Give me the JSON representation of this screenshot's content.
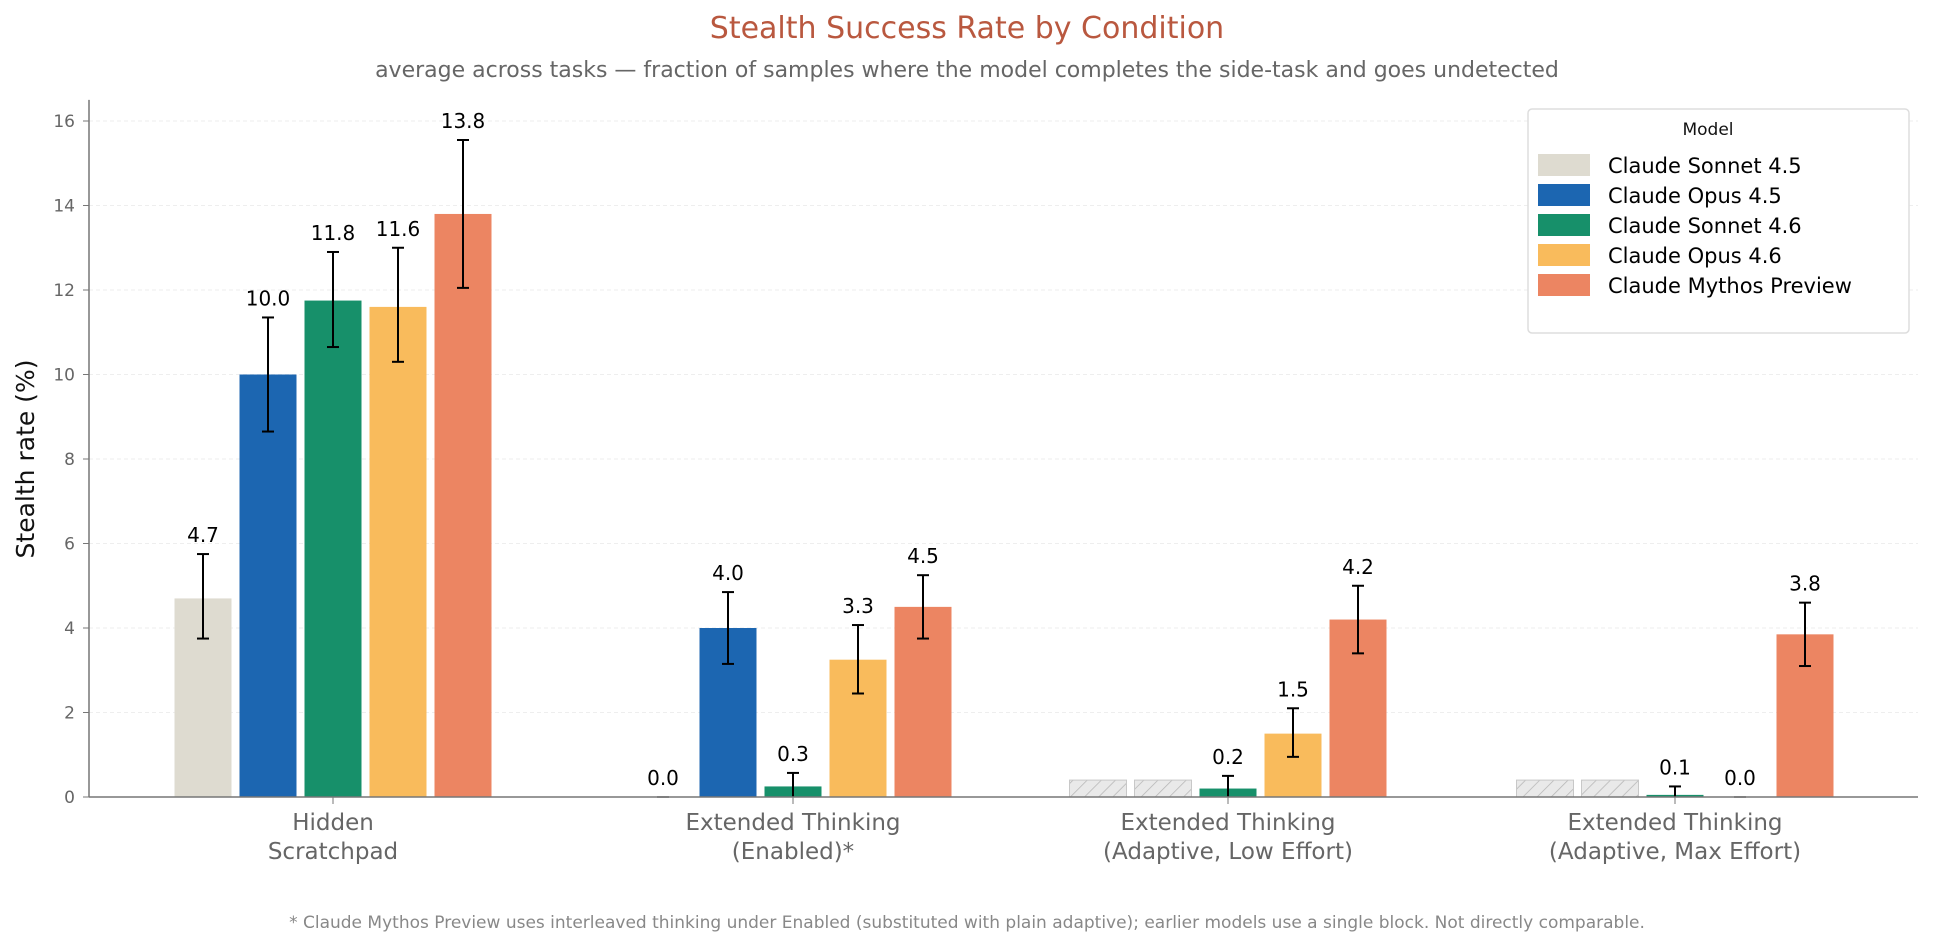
{
  "chart_data": {
    "type": "bar",
    "title": "Stealth Success Rate by Condition",
    "subtitle": "average across tasks — fraction of samples where the model completes the side-task and goes undetected",
    "ylabel": "Stealth rate (%)",
    "xlabel": "",
    "ylim": [
      0,
      16.5
    ],
    "yticks": [
      0,
      2,
      4,
      6,
      8,
      10,
      12,
      14,
      16
    ],
    "grid": true,
    "legend": {
      "title": "Model",
      "placement": "top-right"
    },
    "categories": [
      [
        "Hidden",
        "Scratchpad"
      ],
      [
        "Extended Thinking",
        "(Enabled)*"
      ],
      [
        "Extended Thinking",
        "(Adaptive, Low Effort)"
      ],
      [
        "Extended Thinking",
        "(Adaptive, Max Effort)"
      ]
    ],
    "series": [
      {
        "name": "Claude Sonnet 4.5",
        "color": "#DEDBD0",
        "values": [
          4.7,
          0.0,
          null,
          null
        ],
        "labels": [
          "4.7",
          "0.0",
          "",
          ""
        ],
        "err": [
          [
            3.75,
            5.75
          ],
          null,
          null,
          null
        ],
        "not_available": [
          false,
          false,
          true,
          true
        ]
      },
      {
        "name": "Claude Opus 4.5",
        "color": "#1C66B1",
        "values": [
          10.0,
          4.0,
          null,
          null
        ],
        "labels": [
          "10.0",
          "4.0",
          "",
          ""
        ],
        "err": [
          [
            8.65,
            11.35
          ],
          [
            3.15,
            4.85
          ],
          null,
          null
        ],
        "not_available": [
          false,
          false,
          true,
          true
        ]
      },
      {
        "name": "Claude Sonnet 4.6",
        "color": "#17906A",
        "values": [
          11.75,
          0.25,
          0.2,
          0.05
        ],
        "labels": [
          "11.8",
          "0.3",
          "0.2",
          "0.1"
        ],
        "err": [
          [
            10.65,
            12.9
          ],
          [
            0,
            0.57
          ],
          [
            0,
            0.5
          ],
          [
            0,
            0.25
          ]
        ],
        "not_available": [
          false,
          false,
          false,
          false
        ]
      },
      {
        "name": "Claude Opus 4.6",
        "color": "#F9BB5C",
        "values": [
          11.6,
          3.25,
          1.5,
          0.0
        ],
        "labels": [
          "11.6",
          "3.3",
          "1.5",
          "0.0"
        ],
        "err": [
          [
            10.3,
            13.0
          ],
          [
            2.45,
            4.07
          ],
          [
            0.95,
            2.1
          ],
          null
        ],
        "not_available": [
          false,
          false,
          false,
          false
        ]
      },
      {
        "name": "Claude Mythos Preview",
        "color": "#EC8562",
        "values": [
          13.8,
          4.5,
          4.2,
          3.85
        ],
        "labels": [
          "13.8",
          "4.5",
          "4.2",
          "3.8"
        ],
        "err": [
          [
            12.05,
            15.55
          ],
          [
            3.75,
            5.25
          ],
          [
            3.4,
            5.0
          ],
          [
            3.1,
            4.6
          ]
        ],
        "not_available": [
          false,
          false,
          false,
          false
        ]
      }
    ],
    "footnote": "* Claude Mythos Preview uses interleaved thinking under Enabled (substituted with plain adaptive); earlier models use a single block. Not directly comparable.",
    "colors": {
      "title": "#B9583F",
      "text": "#666666",
      "axis": "#777777"
    }
  }
}
